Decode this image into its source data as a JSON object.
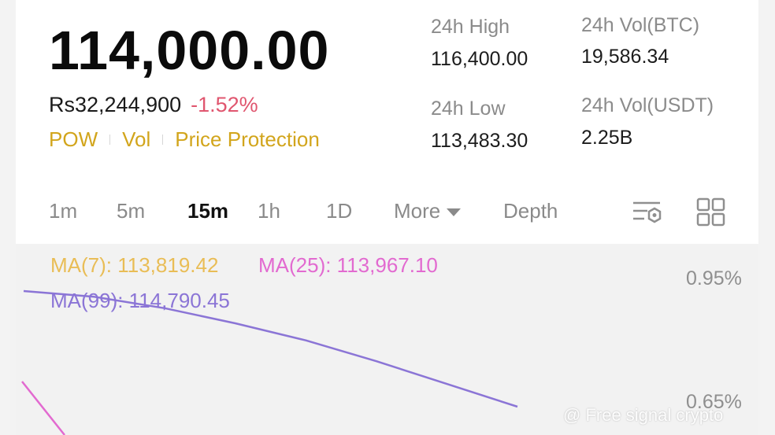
{
  "ticker": {
    "last_price": "114,000.00",
    "fiat_price": "Rs32,244,900",
    "change_pct": "-1.52%",
    "tags": [
      "POW",
      "Vol",
      "Price Protection"
    ]
  },
  "stats": {
    "high_label": "24h High",
    "high_value": "116,400.00",
    "low_label": "24h Low",
    "low_value": "113,483.30",
    "vol_btc_label": "24h Vol(BTC)",
    "vol_btc_value": "19,586.34",
    "vol_usdt_label": "24h Vol(USDT)",
    "vol_usdt_value": "2.25B"
  },
  "tabs": {
    "items": [
      "1m",
      "5m",
      "15m",
      "1h",
      "1D",
      "More",
      "Depth"
    ],
    "active": "15m"
  },
  "icons": {
    "settings": "chart-settings-icon",
    "layout": "grid-layout-icon"
  },
  "chart": {
    "ma7": "MA(7): 113,819.42",
    "ma25": "MA(25): 113,967.10",
    "ma99": "MA(99): 114,790.45",
    "axis_top": "0.95%",
    "axis_bottom": "0.65%",
    "colors": {
      "ma7": "#e9bd56",
      "ma25": "#e26ad0",
      "ma99": "#8b75d6",
      "change": "#e0566f",
      "tags": "#d2a51c"
    }
  },
  "watermark": "@ Free signal crypto",
  "chart_data": {
    "type": "line",
    "title": "",
    "series": [
      {
        "name": "MA(99)",
        "values": [
          114790.45,
          114760,
          114700,
          114620,
          114530,
          114420,
          114300,
          114180
        ]
      },
      {
        "name": "MA(25)",
        "values": [
          113967.1,
          113900
        ]
      }
    ],
    "ylabels": [
      "0.95%",
      "0.65%"
    ]
  }
}
